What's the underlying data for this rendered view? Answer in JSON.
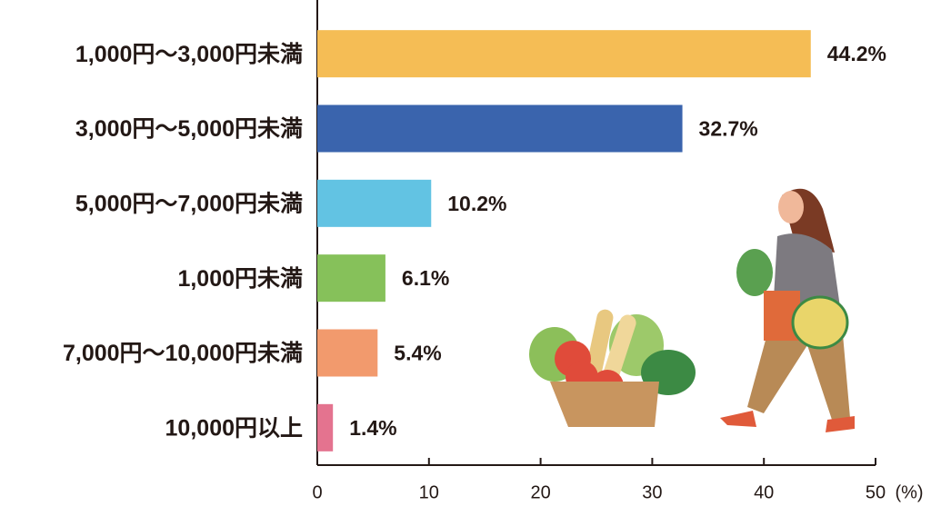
{
  "chart_data": {
    "type": "barh",
    "categories": [
      "1,000円～3,000円未満",
      "3,000円～5,000円未満",
      "5,000円～7,000円未満",
      "1,000円未満",
      "7,000円～10,000円未満",
      "10,000円以上"
    ],
    "values": [
      44.2,
      32.7,
      10.2,
      6.1,
      5.4,
      1.4
    ],
    "value_labels": [
      "44.2%",
      "32.7%",
      "10.2%",
      "6.1%",
      "5.4%",
      "1.4%"
    ],
    "colors": [
      "#f5bd55",
      "#3a64ad",
      "#62c3e3",
      "#86c15a",
      "#f29a6d",
      "#e4738f"
    ],
    "xlim": [
      0,
      50
    ],
    "xticks": [
      0,
      10,
      20,
      30,
      40,
      50
    ],
    "xlabel": "(%)"
  }
}
